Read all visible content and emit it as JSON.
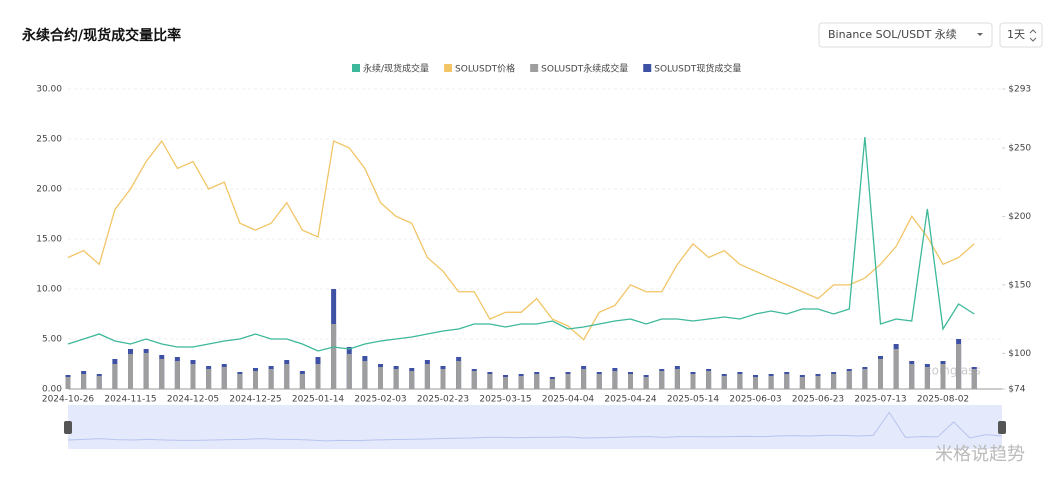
{
  "chart_data": {
    "type": "line",
    "title": "永续合约/现货成交量比率",
    "controls": {
      "exchange": "Binance SOL/USDT 永续",
      "interval": "1天"
    },
    "watermark": [
      "coinglass",
      "米格说趋势"
    ],
    "categories": [
      "2024-10-26",
      null,
      null,
      null,
      "2024-11-15",
      null,
      null,
      null,
      "2024-12-05",
      null,
      null,
      null,
      "2024-12-25",
      null,
      null,
      null,
      "2025-01-14",
      null,
      null,
      null,
      "2025-02-03",
      null,
      null,
      null,
      "2025-02-23",
      null,
      null,
      null,
      "2025-03-15",
      null,
      null,
      null,
      "2025-04-04",
      null,
      null,
      null,
      "2025-04-24",
      null,
      null,
      null,
      "2025-05-14",
      null,
      null,
      null,
      "2025-06-03",
      null,
      null,
      null,
      "2025-06-23",
      null,
      null,
      null,
      "2025-07-13",
      null,
      null,
      null,
      "2025-08-02",
      null,
      null
    ],
    "series": [
      {
        "name": "永续/现货成交量",
        "type": "line",
        "color": "#3db89a",
        "values": [
          4.5,
          5,
          5.5,
          4.8,
          4.5,
          5,
          4.5,
          4.2,
          4.2,
          4.5,
          4.8,
          5,
          5.5,
          5,
          5,
          4.5,
          3.8,
          4.2,
          4,
          4.5,
          4.8,
          5,
          5.2,
          5.5,
          5.8,
          6,
          6.5,
          6.5,
          6.2,
          6.5,
          6.5,
          6.8,
          6,
          6.2,
          6.5,
          6.8,
          7,
          6.5,
          7,
          7,
          6.8,
          7,
          7.2,
          7,
          7.5,
          7.8,
          7.5,
          8,
          8,
          7.5,
          8,
          25.2,
          6.5,
          7,
          6.8,
          18,
          6,
          8.5,
          7.5
        ]
      },
      {
        "name": "SOLUSDT价格",
        "type": "line",
        "axis": "y2",
        "color": "#f2c566",
        "values": [
          170,
          175,
          165,
          205,
          220,
          240,
          255,
          235,
          240,
          220,
          225,
          195,
          190,
          195,
          210,
          190,
          185,
          255,
          250,
          235,
          210,
          200,
          195,
          170,
          160,
          145,
          145,
          125,
          130,
          130,
          140,
          125,
          120,
          110,
          130,
          135,
          150,
          145,
          145,
          165,
          180,
          170,
          175,
          165,
          160,
          155,
          150,
          145,
          140,
          150,
          150,
          155,
          165,
          178,
          200,
          185,
          165,
          170,
          180
        ]
      },
      {
        "name": "SOLUSDT永续成交量",
        "type": "bar",
        "color": "#9e9e9e",
        "values": [
          1.2,
          1.5,
          1.3,
          2.5,
          3.5,
          3.6,
          3.0,
          2.8,
          2.5,
          2.0,
          2.2,
          1.5,
          1.8,
          2.0,
          2.5,
          1.5,
          2.5,
          6.5,
          3.5,
          2.8,
          2.2,
          2.0,
          1.8,
          2.5,
          2.0,
          2.8,
          1.8,
          1.5,
          1.2,
          1.3,
          1.5,
          1.0,
          1.5,
          2.0,
          1.5,
          1.8,
          1.5,
          1.2,
          1.8,
          2.0,
          1.5,
          1.8,
          1.3,
          1.5,
          1.2,
          1.3,
          1.5,
          1.2,
          1.3,
          1.5,
          1.8,
          2.0,
          3.0,
          4.0,
          2.5,
          2.2,
          2.5,
          4.5,
          2.0
        ]
      },
      {
        "name": "SOLUSDT现货成交量",
        "type": "bar",
        "color": "#3f51a5",
        "values": [
          1.4,
          1.8,
          1.5,
          3.0,
          4.0,
          4.0,
          3.4,
          3.2,
          2.9,
          2.3,
          2.5,
          1.7,
          2.1,
          2.3,
          2.9,
          1.8,
          3.2,
          10,
          4.2,
          3.3,
          2.5,
          2.3,
          2.1,
          2.9,
          2.3,
          3.2,
          2.0,
          1.7,
          1.4,
          1.5,
          1.7,
          1.2,
          1.7,
          2.3,
          1.7,
          2.1,
          1.7,
          1.4,
          2.0,
          2.3,
          1.7,
          2.0,
          1.5,
          1.7,
          1.4,
          1.5,
          1.7,
          1.4,
          1.5,
          1.7,
          2.0,
          2.2,
          3.3,
          4.5,
          2.8,
          2.5,
          2.8,
          5.0,
          2.2
        ]
      }
    ],
    "ylim": [
      0,
      30
    ],
    "yticks": [
      {
        "value": 0,
        "label": "0.00"
      },
      {
        "value": 5,
        "label": "5.00"
      },
      {
        "value": 10,
        "label": "10.00"
      },
      {
        "value": 15,
        "label": "15.00"
      },
      {
        "value": 20,
        "label": "20.00"
      },
      {
        "value": 25,
        "label": "25.00"
      },
      {
        "value": 30,
        "label": "30.00"
      }
    ],
    "y2lim": [
      74,
      293
    ],
    "y2ticks": [
      {
        "value": 74,
        "label": "$74"
      },
      {
        "value": 100,
        "label": "$100"
      },
      {
        "value": 150,
        "label": "$150"
      },
      {
        "value": 200,
        "label": "$200"
      },
      {
        "value": 250,
        "label": "$250"
      },
      {
        "value": 293,
        "label": "$293"
      }
    ],
    "grid": true,
    "legend": "top"
  }
}
